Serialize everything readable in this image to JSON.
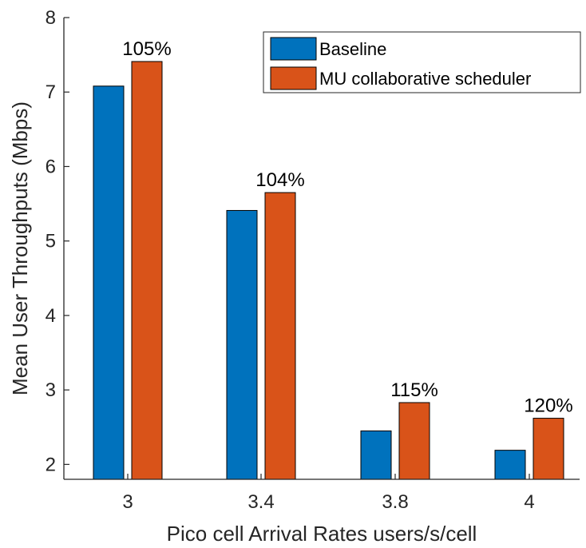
{
  "chart_data": {
    "type": "bar",
    "categories": [
      "3",
      "3.4",
      "3.8",
      "4"
    ],
    "series": [
      {
        "name": "Baseline",
        "values": [
          7.08,
          5.41,
          2.45,
          2.19
        ],
        "color": "#0072BD"
      },
      {
        "name": "MU collaborative scheduler",
        "values": [
          7.41,
          5.65,
          2.83,
          2.62
        ],
        "color": "#D95319"
      }
    ],
    "annotations": [
      "105%",
      "104%",
      "115%",
      "120%"
    ],
    "xlabel": "Pico cell Arrival Rates users/s/cell",
    "ylabel": "Mean User Throughputs (Mbps)",
    "ylim": [
      1.8,
      8
    ],
    "yticks": [
      "2",
      "3",
      "4",
      "5",
      "6",
      "7",
      "8"
    ],
    "grid": false,
    "legend_position": "top-right"
  }
}
